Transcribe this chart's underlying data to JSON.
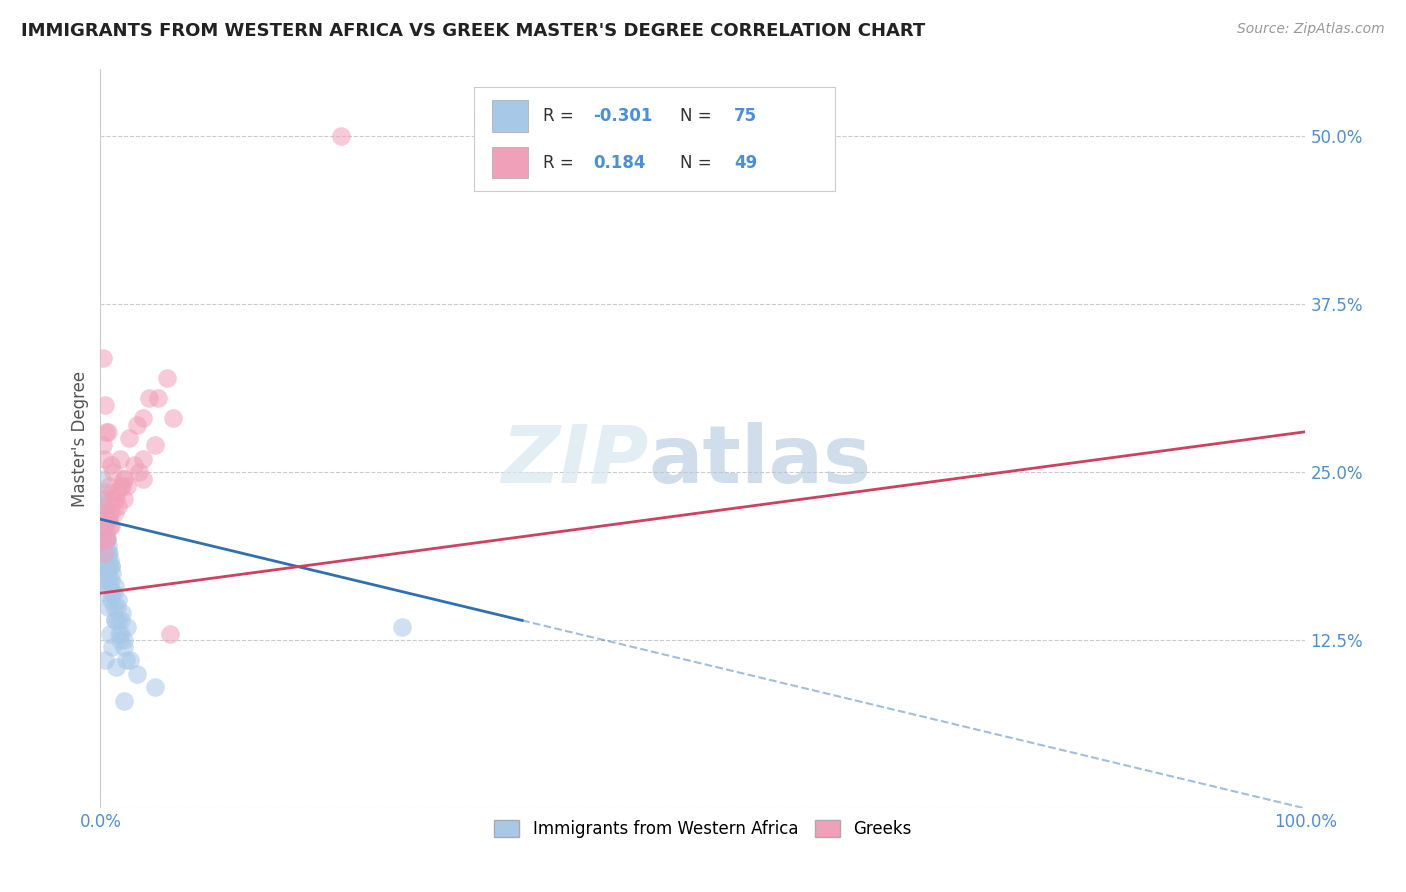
{
  "title": "IMMIGRANTS FROM WESTERN AFRICA VS GREEK MASTER'S DEGREE CORRELATION CHART",
  "source": "Source: ZipAtlas.com",
  "ylabel": "Master's Degree",
  "blue_color": "#a8c8e8",
  "pink_color": "#f0a0b8",
  "blue_line_color": "#3070b0",
  "pink_line_color": "#d04060",
  "blue_scatter_x": [
    0.15,
    0.18,
    0.22,
    0.28,
    0.35,
    0.12,
    0.4,
    0.55,
    0.7,
    0.9,
    0.2,
    0.3,
    0.45,
    0.6,
    0.8,
    1.0,
    1.2,
    1.5,
    1.8,
    2.2,
    0.15,
    0.25,
    0.35,
    0.5,
    0.65,
    0.85,
    1.1,
    1.4,
    1.7,
    2.0,
    0.18,
    0.28,
    0.38,
    0.52,
    0.68,
    0.88,
    1.15,
    1.45,
    1.75,
    2.5,
    0.22,
    0.32,
    0.42,
    0.58,
    0.75,
    0.95,
    1.25,
    1.55,
    2.0,
    3.0,
    0.2,
    0.3,
    0.4,
    0.55,
    0.7,
    0.9,
    1.2,
    1.6,
    2.1,
    4.5,
    0.12,
    0.18,
    0.25,
    0.35,
    0.48,
    0.62,
    0.8,
    1.0,
    1.3,
    2.0,
    0.14,
    0.19,
    0.27,
    0.4,
    25.0
  ],
  "blue_scatter_y": [
    20.5,
    21.0,
    22.0,
    20.0,
    19.5,
    23.0,
    21.5,
    20.0,
    19.0,
    18.0,
    22.5,
    21.0,
    20.5,
    19.5,
    18.5,
    17.5,
    16.5,
    15.5,
    14.5,
    13.5,
    24.5,
    22.0,
    21.0,
    20.0,
    19.0,
    18.0,
    16.0,
    15.0,
    14.0,
    12.5,
    23.5,
    21.0,
    20.0,
    19.0,
    18.0,
    17.0,
    15.0,
    14.0,
    13.0,
    11.0,
    22.5,
    20.0,
    19.0,
    18.0,
    17.0,
    16.0,
    14.0,
    13.0,
    12.0,
    10.0,
    22.0,
    20.0,
    18.5,
    17.5,
    16.5,
    15.5,
    14.0,
    12.5,
    11.0,
    9.0,
    21.0,
    19.0,
    18.0,
    17.0,
    16.0,
    15.0,
    13.0,
    12.0,
    10.5,
    8.0,
    20.0,
    18.0,
    17.0,
    11.0,
    13.5
  ],
  "pink_scatter_x": [
    0.25,
    0.5,
    0.7,
    0.95,
    1.8,
    0.4,
    0.8,
    1.5,
    2.2,
    3.5,
    0.18,
    0.38,
    0.62,
    0.92,
    1.35,
    2.0,
    3.0,
    4.0,
    5.5,
    0.22,
    0.45,
    0.72,
    1.05,
    1.6,
    2.4,
    3.5,
    4.8,
    0.3,
    0.58,
    0.88,
    1.3,
    2.0,
    3.2,
    0.15,
    0.42,
    0.7,
    1.1,
    1.7,
    2.8,
    4.5,
    6.0,
    0.28,
    0.55,
    0.85,
    1.25,
    2.0,
    3.5,
    5.8,
    20.0
  ],
  "pink_scatter_y": [
    23.0,
    22.0,
    21.5,
    23.5,
    24.0,
    20.0,
    21.0,
    22.5,
    24.0,
    26.0,
    33.5,
    30.0,
    28.0,
    25.5,
    23.5,
    24.5,
    28.5,
    30.5,
    32.0,
    27.0,
    28.0,
    24.0,
    25.0,
    26.0,
    27.5,
    29.0,
    30.5,
    26.0,
    21.5,
    22.0,
    23.0,
    24.5,
    25.0,
    20.0,
    21.0,
    22.0,
    23.0,
    24.0,
    25.5,
    27.0,
    29.0,
    19.0,
    20.0,
    21.0,
    22.0,
    23.0,
    24.5,
    13.0,
    50.0
  ],
  "blue_line_start_x": 0.0,
  "blue_line_end_x": 100.0,
  "blue_line_start_y": 21.5,
  "blue_line_end_y": 0.0,
  "blue_solid_end_x": 35.0,
  "pink_line_start_x": 0.0,
  "pink_line_end_x": 100.0,
  "pink_line_start_y": 16.0,
  "pink_line_end_y": 28.0,
  "xlim": [
    0,
    100
  ],
  "ylim": [
    0,
    55
  ],
  "yticks": [
    0,
    12.5,
    25.0,
    37.5,
    50.0
  ],
  "ytick_labels": [
    "",
    "12.5%",
    "25.0%",
    "37.5%",
    "50.0%"
  ],
  "xticks": [
    0,
    100
  ],
  "xtick_labels": [
    "0.0%",
    "100.0%"
  ],
  "legend_label1": "Immigrants from Western Africa",
  "legend_label2": "Greeks",
  "watermark_zip": "ZIP",
  "watermark_atlas": "atlas",
  "grid_color": "#cccccc",
  "tick_color": "#4a90d9",
  "title_fontsize": 13,
  "source_fontsize": 10,
  "ylabel_fontsize": 12,
  "scatter_size": 180,
  "scatter_alpha": 0.55
}
